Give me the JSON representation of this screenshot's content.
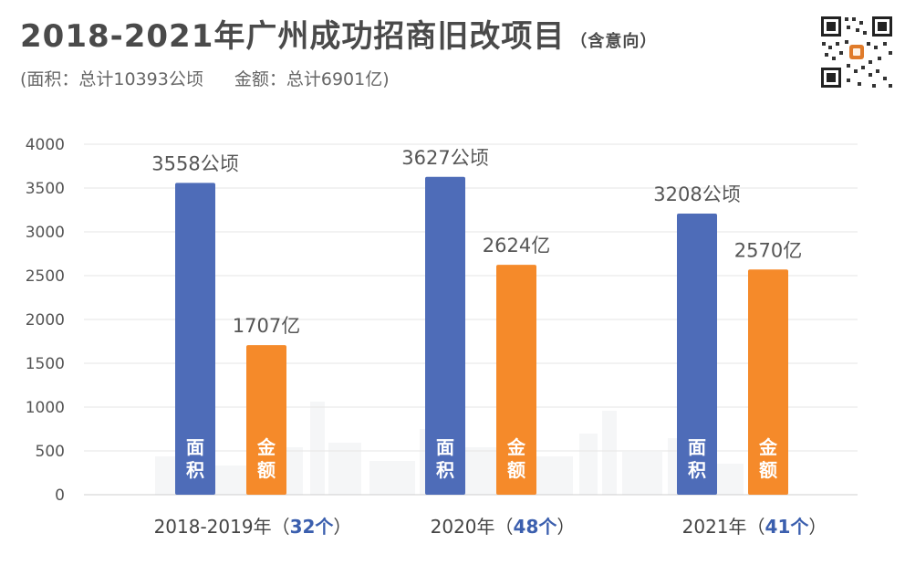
{
  "header": {
    "title": "2018-2021年广州成功招商旧改项目",
    "title_suffix": "（含意向）",
    "subtitle_area": "(面积：总计10393公顷",
    "subtitle_amount": "金额：总计6901亿)"
  },
  "qr_icon": "qr-code-icon",
  "colors": {
    "area_bar": "#4e6cb8",
    "amount_bar": "#f58a2a",
    "count_highlight": "#3b5fae",
    "grid": "#e6e6e6"
  },
  "chart_data": {
    "type": "bar",
    "title": "2018-2021年广州成功招商旧改项目（含意向）",
    "categories": [
      "2018-2019年",
      "2020年",
      "2021年"
    ],
    "category_counts": [
      "32个",
      "48个",
      "41个"
    ],
    "series": [
      {
        "name": "面积",
        "unit_label": "公顷",
        "values": [
          3558,
          3627,
          3208
        ],
        "labels": [
          "3558公顷",
          "3627公顷",
          "3208公顷"
        ]
      },
      {
        "name": "金额",
        "unit_label": "亿",
        "values": [
          1707,
          2624,
          2570
        ],
        "labels": [
          "1707亿",
          "2624亿",
          "2570亿"
        ]
      }
    ],
    "ylim": [
      0,
      4000
    ],
    "yticks": [
      0,
      500,
      1000,
      1500,
      2000,
      2500,
      3000,
      3500,
      4000
    ],
    "grid": true,
    "legend": "none (series names printed inside bars)"
  }
}
